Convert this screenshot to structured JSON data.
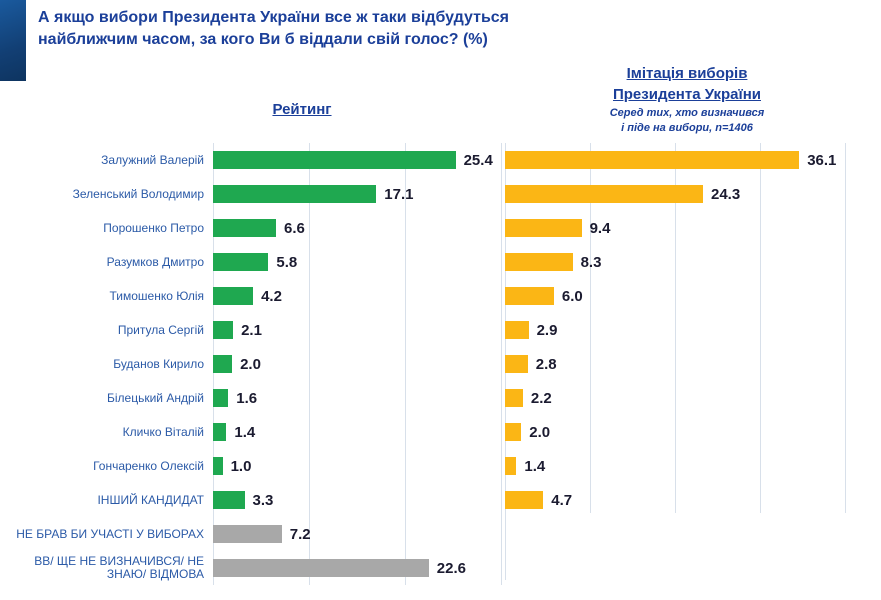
{
  "title": {
    "line1": "А якщо вибори Президента України все ж таки відбудуться",
    "line2": "найближчим часом, за кого Ви б віддали свій голос? (%)"
  },
  "headers": {
    "rating": "Рейтинг",
    "imitation_line1": "Імітація виборів",
    "imitation_line2": "Президента України",
    "imitation_sub1": "Серед тих, хто визначився",
    "imitation_sub2": "і піде на вибори, n=1406"
  },
  "colors": {
    "title_blue": "#1b3f99",
    "label_blue": "#2b5aa7",
    "rating_bar_green": "#1fa850",
    "imitation_bar_yellow": "#fbb615",
    "gray_bar": "#a8a8a8",
    "value_text": "#1b1b30",
    "gridline": "#d8e0ea",
    "corner_navy": "#123f74"
  },
  "chart_data": {
    "type": "bar",
    "orientation": "horizontal",
    "title": "А якщо вибори Президента України все ж таки відбудуться найближчим часом, за кого Ви б віддали свій голос? (%)",
    "categories": [
      "Залужний Валерій",
      "Зеленський Володимир",
      "Порошенко Петро",
      "Разумков Дмитро",
      "Тимошенко Юлія",
      "Притула Сергій",
      "Буданов Кирило",
      "Білецький Андрій",
      "Кличко Віталій",
      "Гончаренко Олексій",
      "ІНШИЙ КАНДИДАТ",
      "НЕ БРАВ БИ УЧАСТІ У ВИБОРАХ",
      "ВВ/ ЩЕ НЕ ВИЗНАЧИВСЯ/ НЕ ЗНАЮ/ ВІДМОВА"
    ],
    "series": [
      {
        "name": "Рейтинг",
        "values": [
          25.4,
          17.1,
          6.6,
          5.8,
          4.2,
          2.1,
          2.0,
          1.6,
          1.4,
          1.0,
          3.3,
          7.2,
          22.6
        ]
      },
      {
        "name": "Імітація виборів Президента України (серед тих, хто визначився і піде на вибори, n=1406)",
        "values": [
          36.1,
          24.3,
          9.4,
          8.3,
          6.0,
          2.9,
          2.8,
          2.2,
          2.0,
          1.4,
          4.7,
          null,
          null
        ]
      }
    ],
    "gray_from_index": 11,
    "xlim_rating": [
      0,
      30
    ],
    "xlim_imitation": [
      0,
      40
    ],
    "gridline_step": 10,
    "grid": true,
    "legend_position": "none",
    "data_labels": true
  }
}
